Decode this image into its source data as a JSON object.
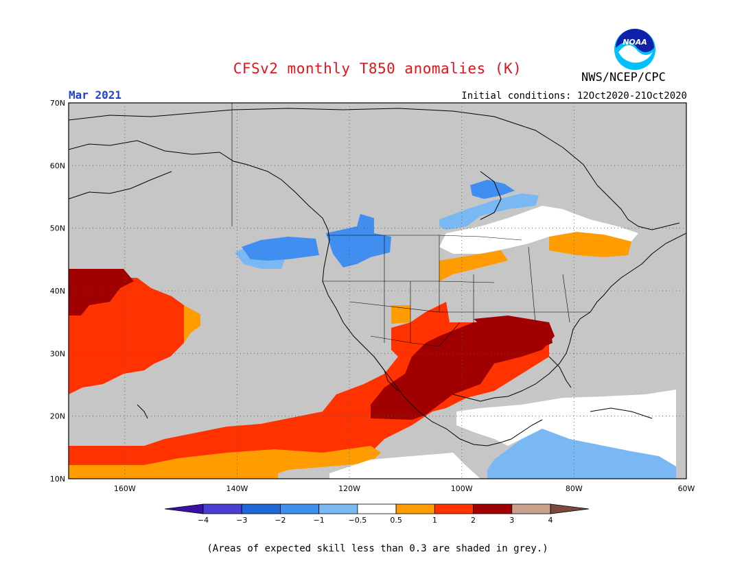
{
  "header": {
    "title": "CFSv2 monthly T850 anomalies (K)",
    "organization": "NWS/NCEP/CPC",
    "valid_month": "Mar 2021",
    "initial_conditions": "Initial conditions: 12Oct2020-21Oct2020",
    "logo_text": "NOAA"
  },
  "map": {
    "lat_labels": [
      "70N",
      "60N",
      "50N",
      "40N",
      "30N",
      "20N",
      "10N"
    ],
    "lon_labels": [
      "160W",
      "140W",
      "120W",
      "100W",
      "80W",
      "60W"
    ],
    "lat_range": [
      10,
      70
    ],
    "lon_range": [
      -170,
      -60
    ],
    "grid": "dotted",
    "background_color": "#c6c6c6",
    "regions": [
      {
        "name": "positive-anomaly-2-3-north-pacific",
        "class": "2 to 3"
      },
      {
        "name": "positive-anomaly-1-2-subtropical-pacific",
        "class": "1 to 2"
      },
      {
        "name": "positive-anomaly-2-3-mexico-gulf",
        "class": "2 to 3"
      },
      {
        "name": "negative-anomaly-pacific-northwest",
        "class": "-1 to -0.5"
      },
      {
        "name": "negative-anomaly-caribbean",
        "class": "-1 to -0.5"
      },
      {
        "name": "positive-anomaly-great-lakes",
        "class": "0.5 to 1"
      }
    ]
  },
  "colorbar": {
    "ticks": [
      "−4",
      "−3",
      "−2",
      "−1",
      "−0.5",
      "0.5",
      "1",
      "2",
      "3",
      "4"
    ],
    "colors": [
      "#3a10a6",
      "#4b3fd3",
      "#1e68d8",
      "#3f8ef0",
      "#79b8f2",
      "#ffffff",
      "#ff9c00",
      "#ff3200",
      "#a00000",
      "#c8a08c",
      "#7a4a3c"
    ]
  },
  "footer": {
    "note": "(Areas of expected skill less than 0.3 are shaded in grey.)"
  }
}
